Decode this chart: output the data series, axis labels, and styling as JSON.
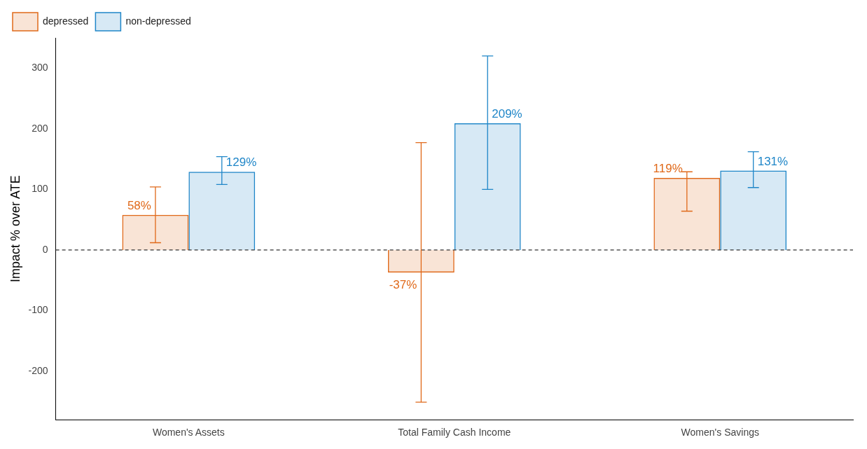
{
  "chart_data": {
    "type": "bar",
    "ylabel": "Impact % over ATE",
    "categories": [
      "Women's Assets",
      "Total Family Cash Income",
      "Women's Savings"
    ],
    "series": [
      {
        "name": "depressed",
        "color": "#e0691a",
        "values": [
          58,
          -37,
          119
        ],
        "errors": [
          [
            12,
            104
          ],
          [
            -251,
            177
          ],
          [
            64,
            129
          ]
        ],
        "value_labels": [
          "58%",
          "-37%",
          "119%"
        ]
      },
      {
        "name": "non-depressed",
        "color": "#1f86c8",
        "values": [
          129,
          209,
          131
        ],
        "errors": [
          [
            108,
            154
          ],
          [
            100,
            320
          ],
          [
            103,
            162
          ]
        ],
        "value_labels": [
          "129%",
          "209%",
          "131%"
        ]
      }
    ],
    "ylim": [
      -280,
      350
    ],
    "yticks": [
      -200,
      -100,
      0,
      100,
      200,
      300
    ],
    "grid": false,
    "legend": "top left",
    "ref_lines": [
      {
        "axis": "y",
        "value": 0,
        "line_style": "dashed",
        "color": "#333333"
      }
    ]
  }
}
